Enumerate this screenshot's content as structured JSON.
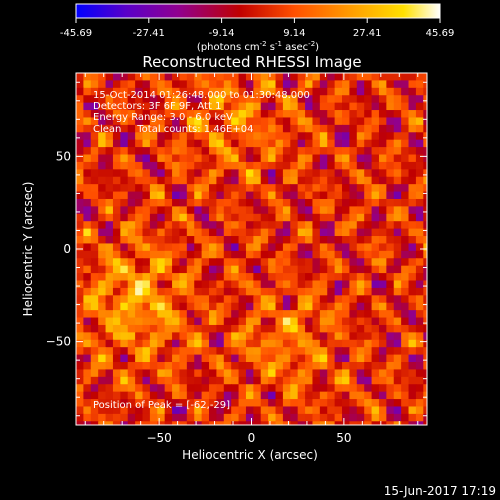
{
  "colorbar": {
    "ticks": [
      "-45.69",
      "-27.41",
      "-9.14",
      "9.14",
      "27.41",
      "45.69"
    ],
    "units_main": "(photons cm",
    "units_exp1": "-2",
    "units_mid1": " s",
    "units_exp2": "-1",
    "units_mid2": " asec",
    "units_exp3": "-2",
    "units_end": ")"
  },
  "footer": {
    "timestamp": "15-Jun-2017 17:19"
  },
  "annotation": {
    "line1": "15-Oct-2014 01:26:48.000 to 01:30:48.000",
    "line2": "Detectors: 3F 6F 9F, Att 1",
    "line3": "Energy Range: 3.0 - 6.0 keV",
    "line4": "Clean     Total counts: 1.46E+04",
    "peak": "Position of Peak = [-62,-29]"
  },
  "chart_data": {
    "type": "heatmap",
    "title": "Reconstructed RHESSI Image",
    "xlabel": "Heliocentric X (arcsec)",
    "ylabel": "Heliocentric Y (arcsec)",
    "xlim": [
      -95,
      95
    ],
    "ylim": [
      -95,
      95
    ],
    "x_ticks": [
      -50,
      0,
      50
    ],
    "y_ticks": [
      -50,
      0,
      50
    ],
    "x_tick_labels": [
      "−50",
      "0",
      "50"
    ],
    "y_tick_labels": [
      "−50",
      "0",
      "50"
    ],
    "color_range": [
      -45.69,
      45.69
    ],
    "colormap": [
      "#0000ff",
      "#5a00c8",
      "#900090",
      "#c00000",
      "#ff5000",
      "#ff9a00",
      "#ffe000",
      "#ffffff"
    ],
    "grid": false,
    "peak_position": [
      -62,
      -29
    ]
  }
}
